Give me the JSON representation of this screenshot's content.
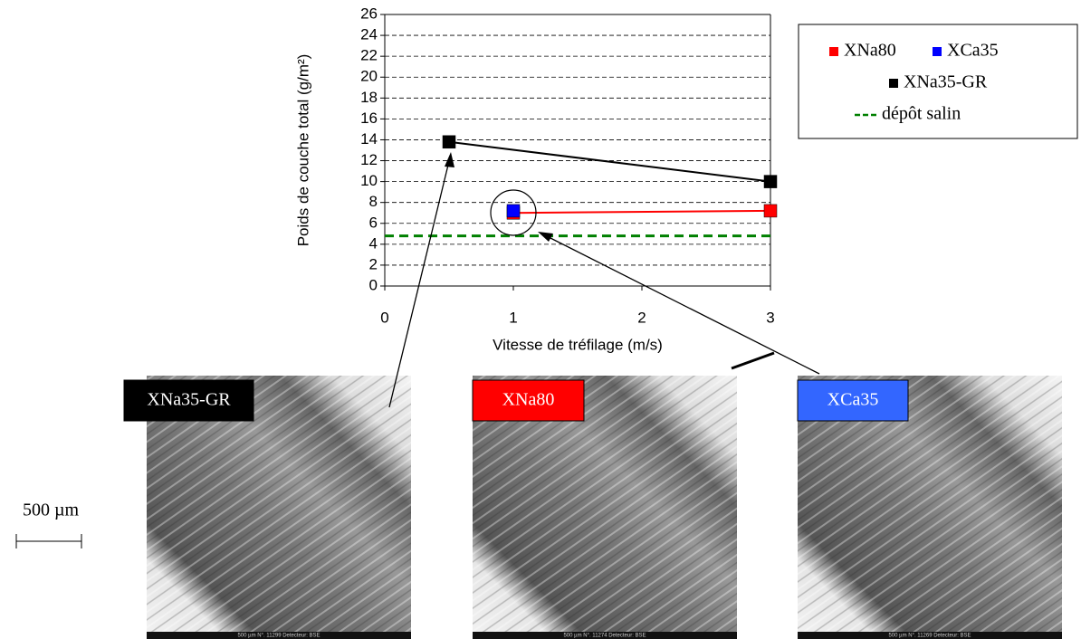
{
  "chart_data": {
    "type": "line",
    "x_label": "Vitesse de tréfilage (m/s)",
    "y_label": "Poids de couche total (g/m²)",
    "xlim": [
      0,
      3
    ],
    "xticks": [
      0,
      1,
      2,
      3
    ],
    "ylim": [
      0,
      26
    ],
    "yticks": [
      0,
      2,
      4,
      6,
      8,
      10,
      12,
      14,
      16,
      18,
      20,
      22,
      24,
      26
    ],
    "grid": true,
    "legend": "outside-top-right",
    "series": [
      {
        "name": "XNa80",
        "color": "#ff0000",
        "x": [
          1,
          3
        ],
        "values": [
          7,
          7.2
        ],
        "marker": true,
        "dashed": false
      },
      {
        "name": "XCa35",
        "color": "#0000ff",
        "x": [
          1
        ],
        "values": [
          7.2
        ],
        "marker": true,
        "dashed": false
      },
      {
        "name": "XNa35-GR",
        "color": "#000000",
        "x": [
          0.5,
          3
        ],
        "values": [
          13.8,
          10
        ],
        "marker": true,
        "dashed": false
      },
      {
        "name": "dépôt salin",
        "color": "#008000",
        "x": [
          0,
          3
        ],
        "values": [
          4.8,
          4.8
        ],
        "marker": false,
        "dashed": true
      }
    ]
  },
  "micrographs": [
    {
      "label": "XNa35-GR",
      "color": "#000000",
      "footer": "500 µm    N°. 11299    Detecteur: BSE"
    },
    {
      "label": "XNa80",
      "color": "#ff0000",
      "footer": "500 µm    N°. 11274    Detecteur: BSE"
    },
    {
      "label": "XCa35",
      "color": "#3366ff",
      "footer": "500 µm    N°. 11269    Detecteur: BSE"
    }
  ],
  "scale_bar": "500 µm"
}
